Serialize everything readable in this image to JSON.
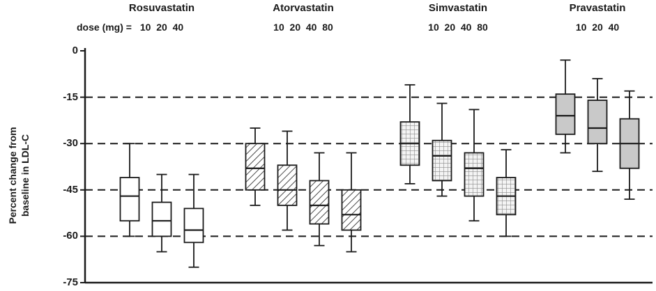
{
  "chart_data": {
    "type": "boxplot",
    "title": "",
    "ylabel": "Percent change from\nbaseline in LDL-C",
    "dose_label_prefix": "dose (mg) =",
    "ylim": [
      -75,
      0
    ],
    "yticks": [
      0,
      -15,
      -30,
      -45,
      -60,
      -75
    ],
    "gridlines": [
      -15,
      -30,
      -45,
      -60
    ],
    "grid_style": "dashed",
    "legend_position": "none",
    "stat_order": [
      "whisker_low",
      "q1",
      "median",
      "q3",
      "whisker_high"
    ],
    "colors": {
      "line": "#1a1a1a",
      "gray_fill": "#c9c9c9",
      "white_fill": "#ffffff"
    },
    "groups": [
      {
        "name": "Rosuvastatin",
        "pattern": "plain",
        "doses": [
          10,
          20,
          40
        ],
        "boxes": [
          [
            -60,
            -55,
            -47,
            -41,
            -30
          ],
          [
            -65,
            -60,
            -55,
            -49,
            -40
          ],
          [
            -70,
            -62,
            -58,
            -51,
            -40
          ]
        ]
      },
      {
        "name": "Atorvastatin",
        "pattern": "diagonal-hatch",
        "doses": [
          10,
          20,
          40,
          80
        ],
        "boxes": [
          [
            -50,
            -45,
            -38,
            -30,
            -25
          ],
          [
            -58,
            -50,
            -45,
            -37,
            -26
          ],
          [
            -63,
            -56,
            -50,
            -42,
            -33
          ],
          [
            -65,
            -58,
            -53,
            -45,
            -33
          ]
        ]
      },
      {
        "name": "Simvastatin",
        "pattern": "cross-hatch",
        "doses": [
          10,
          20,
          40,
          80
        ],
        "boxes": [
          [
            -43,
            -37,
            -30,
            -23,
            -11
          ],
          [
            -47,
            -42,
            -34,
            -29,
            -17
          ],
          [
            -55,
            -47,
            -38,
            -33,
            -19
          ],
          [
            -60,
            -53,
            -47,
            -41,
            -32
          ]
        ]
      },
      {
        "name": "Pravastatin",
        "pattern": "solid-gray",
        "doses": [
          10,
          20,
          40
        ],
        "boxes": [
          [
            -33,
            -27,
            -21,
            -14,
            -3
          ],
          [
            -39,
            -30,
            -25,
            -16,
            -9
          ],
          [
            -48,
            -38,
            -30,
            -22,
            -13
          ]
        ]
      }
    ]
  }
}
